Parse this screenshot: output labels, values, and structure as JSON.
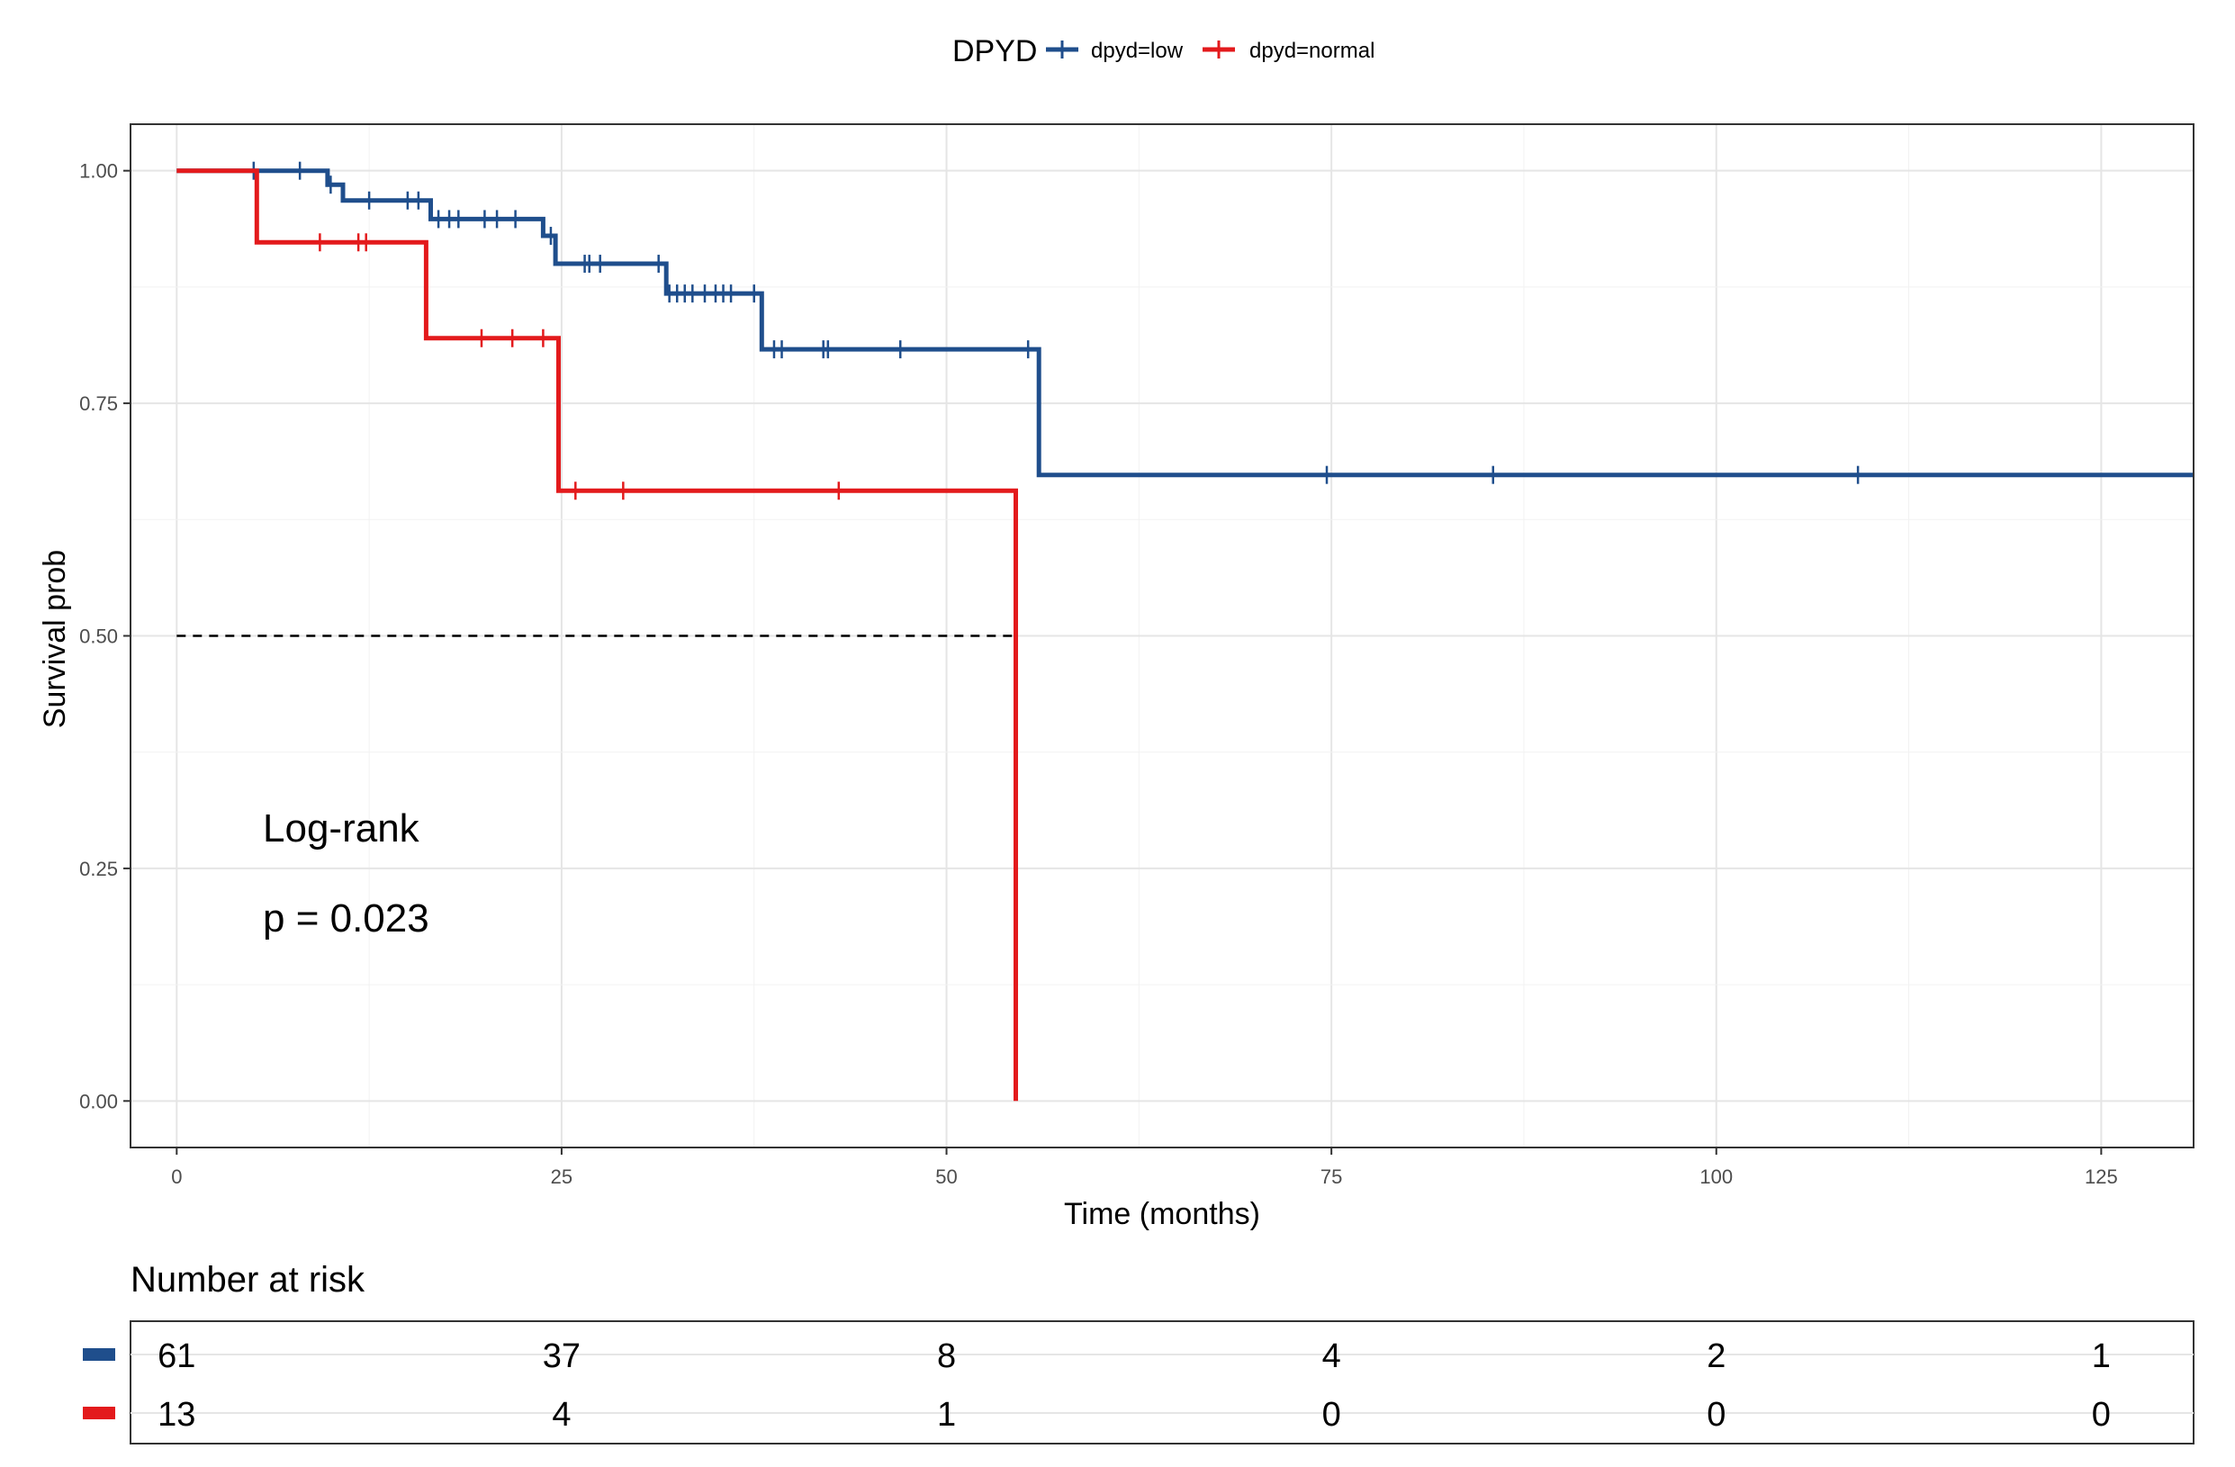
{
  "chart_data": {
    "type": "line",
    "subtype": "kaplan-meier",
    "xlabel": "Time (months)",
    "ylabel": "Survival prob",
    "xlim": [
      -3,
      131
    ],
    "ylim": [
      -0.05,
      1.05
    ],
    "x_ticks": [
      0,
      25,
      50,
      75,
      100,
      125
    ],
    "y_ticks": [
      0,
      0.25,
      0.5,
      0.75,
      1.0
    ],
    "x_tick_labels": [
      "0",
      "25",
      "50",
      "75",
      "100",
      "125"
    ],
    "y_tick_labels": [
      "0.00",
      "0.25",
      "0.50",
      "0.75",
      "1.00"
    ],
    "grid": true,
    "legend": {
      "title": "DPYD",
      "position": "top",
      "entries": [
        "dpyd=low",
        "dpyd=normal"
      ]
    },
    "series": [
      {
        "name": "dpyd=low",
        "color": "#1f4e8c",
        "steps": [
          [
            0,
            1.0
          ],
          [
            9.8,
            1.0
          ],
          [
            9.8,
            0.985
          ],
          [
            10.8,
            0.985
          ],
          [
            10.8,
            0.968
          ],
          [
            16.5,
            0.968
          ],
          [
            16.5,
            0.948
          ],
          [
            23.8,
            0.948
          ],
          [
            23.8,
            0.93
          ],
          [
            24.6,
            0.93
          ],
          [
            24.6,
            0.9
          ],
          [
            31.8,
            0.9
          ],
          [
            31.8,
            0.868
          ],
          [
            38.0,
            0.868
          ],
          [
            38.0,
            0.808
          ],
          [
            56.0,
            0.808
          ],
          [
            56.0,
            0.673
          ],
          [
            131,
            0.673
          ]
        ],
        "censor_x": [
          5,
          8,
          10,
          12.5,
          15,
          15.7,
          17,
          17.7,
          18.3,
          20,
          20.8,
          22,
          24.3,
          26.5,
          26.8,
          27.5,
          31.3,
          32,
          32.5,
          33,
          33.5,
          34.3,
          35,
          35.5,
          36,
          37.5,
          38.8,
          39.3,
          42,
          42.3,
          47,
          55.3,
          74.7,
          85.5,
          109.2
        ]
      },
      {
        "name": "dpyd=normal",
        "color": "#e31a1c",
        "steps": [
          [
            0,
            1.0
          ],
          [
            5.2,
            1.0
          ],
          [
            5.2,
            0.923
          ],
          [
            16.2,
            0.923
          ],
          [
            16.2,
            0.82
          ],
          [
            24.8,
            0.82
          ],
          [
            24.8,
            0.656
          ],
          [
            54.5,
            0.656
          ],
          [
            54.5,
            0.0
          ]
        ],
        "censor_x": [
          9.3,
          11.8,
          12.3,
          19.8,
          21.8,
          23.8,
          25.9,
          29,
          43
        ]
      }
    ],
    "reference_line": {
      "y": 0.5,
      "x_end": 54.5,
      "style": "dashed"
    },
    "annotations": [
      "Log-rank",
      "p = 0.023"
    ],
    "risk_table": {
      "title": "Number at risk",
      "times": [
        0,
        25,
        50,
        75,
        100,
        125
      ],
      "rows": [
        {
          "series": "dpyd=low",
          "color": "#1f4e8c",
          "values": [
            61,
            37,
            8,
            4,
            2,
            1
          ]
        },
        {
          "series": "dpyd=normal",
          "color": "#e31a1c",
          "values": [
            13,
            4,
            1,
            0,
            0,
            0
          ]
        }
      ]
    }
  }
}
